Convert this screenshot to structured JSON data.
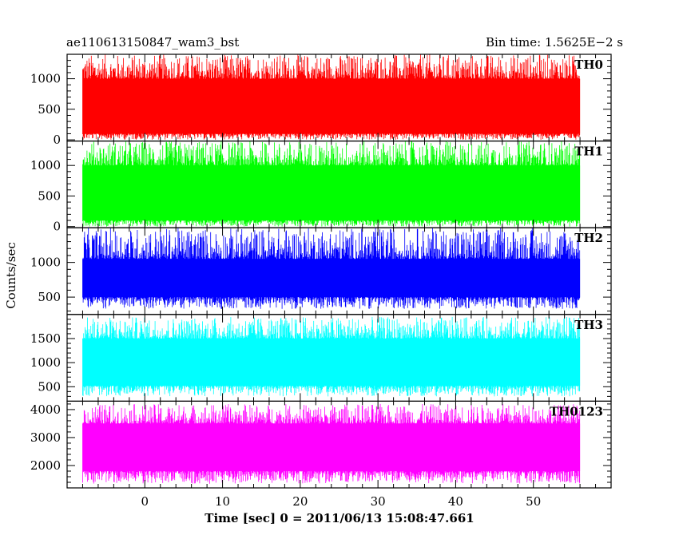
{
  "header": {
    "left_title": "ae110613150847_wam3_bst",
    "right_title": "Bin time: 1.5625E−2 s"
  },
  "chart_data": {
    "type": "line",
    "xlabel": "Time [sec] 0 = 2011/06/13 15:08:47.661",
    "ylabel": "Counts/sec",
    "xlim": [
      -10,
      60
    ],
    "x_ticks": [
      0,
      10,
      20,
      30,
      40,
      50
    ],
    "x_range_data": [
      -8,
      56
    ],
    "bin_time_s": 0.015625,
    "panels": [
      {
        "name": "TH0",
        "color": "#ff0000",
        "ylim": [
          -20,
          1400
        ],
        "y_ticks": [
          0,
          500,
          1000
        ],
        "band_low": 100,
        "band_high": 1000,
        "spike_min": 0,
        "spike_max": 1400
      },
      {
        "name": "TH1",
        "color": "#00ff00",
        "ylim": [
          -20,
          1400
        ],
        "y_ticks": [
          0,
          500,
          1000
        ],
        "band_low": 100,
        "band_high": 1000,
        "spike_min": 0,
        "spike_max": 1400
      },
      {
        "name": "TH2",
        "color": "#0000ff",
        "ylim": [
          250,
          1500
        ],
        "y_ticks": [
          500,
          1000
        ],
        "band_low": 500,
        "band_high": 1050,
        "spike_min": 330,
        "spike_max": 1500
      },
      {
        "name": "TH3",
        "color": "#00ffff",
        "ylim": [
          200,
          2000
        ],
        "y_ticks": [
          500,
          1000,
          1500
        ],
        "band_low": 520,
        "band_high": 1500,
        "spike_min": 300,
        "spike_max": 1950
      },
      {
        "name": "TH0123",
        "color": "#ff00ff",
        "ylim": [
          1200,
          4300
        ],
        "y_ticks": [
          2000,
          3000,
          4000
        ],
        "band_low": 1800,
        "band_high": 3500,
        "spike_min": 1350,
        "spike_max": 4200
      }
    ]
  }
}
